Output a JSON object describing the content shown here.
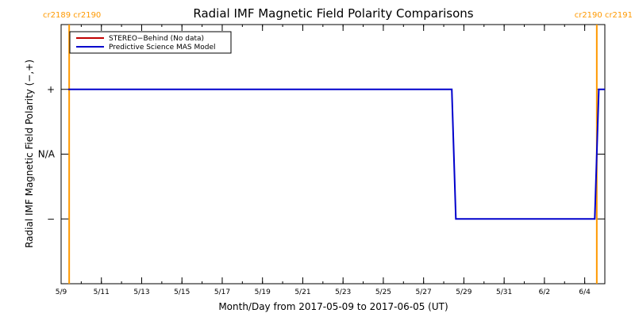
{
  "chart_data": {
    "type": "line",
    "title": "Radial IMF Magnetic Field Polarity Comparisons",
    "xlabel": "Month/Day from 2017-05-09 to 2017-06-05 (UT)",
    "ylabel": "Radial IMF Magnetic Field Polarity (−,+)",
    "x_start": "2017-05-09",
    "x_end": "2017-06-05",
    "xlim": [
      0,
      27
    ],
    "x_ticks": [
      {
        "day": 0,
        "label": "5/9"
      },
      {
        "day": 2,
        "label": "5/11"
      },
      {
        "day": 4,
        "label": "5/13"
      },
      {
        "day": 6,
        "label": "5/15"
      },
      {
        "day": 8,
        "label": "5/17"
      },
      {
        "day": 10,
        "label": "5/19"
      },
      {
        "day": 12,
        "label": "5/21"
      },
      {
        "day": 14,
        "label": "5/23"
      },
      {
        "day": 16,
        "label": "5/25"
      },
      {
        "day": 18,
        "label": "5/27"
      },
      {
        "day": 20,
        "label": "5/29"
      },
      {
        "day": 22,
        "label": "5/31"
      },
      {
        "day": 24,
        "label": "6/2"
      },
      {
        "day": 26,
        "label": "6/4"
      }
    ],
    "y_ticks": [
      {
        "value": 1,
        "label": "+"
      },
      {
        "value": 0,
        "label": "N/A"
      },
      {
        "value": -1,
        "label": "−"
      }
    ],
    "ylim": [
      -2,
      2
    ],
    "legend": "top-left",
    "series": [
      {
        "name": "STEREO−Behind (No data)",
        "color": "#c00000",
        "points": []
      },
      {
        "name": "Predictive Science MAS Model",
        "color": "#0000cc",
        "points": [
          [
            0.35,
            1
          ],
          [
            19.4,
            1
          ],
          [
            19.6,
            -1
          ],
          [
            26.5,
            -1
          ],
          [
            26.7,
            1
          ],
          [
            27,
            1
          ]
        ]
      }
    ],
    "carrington_markers": [
      {
        "day": 0.4,
        "label": "cr2189 cr2190",
        "position": "left"
      },
      {
        "day": 26.6,
        "label": "cr2190 cr2191",
        "position": "right"
      }
    ],
    "marker_color": "#ff9900"
  }
}
